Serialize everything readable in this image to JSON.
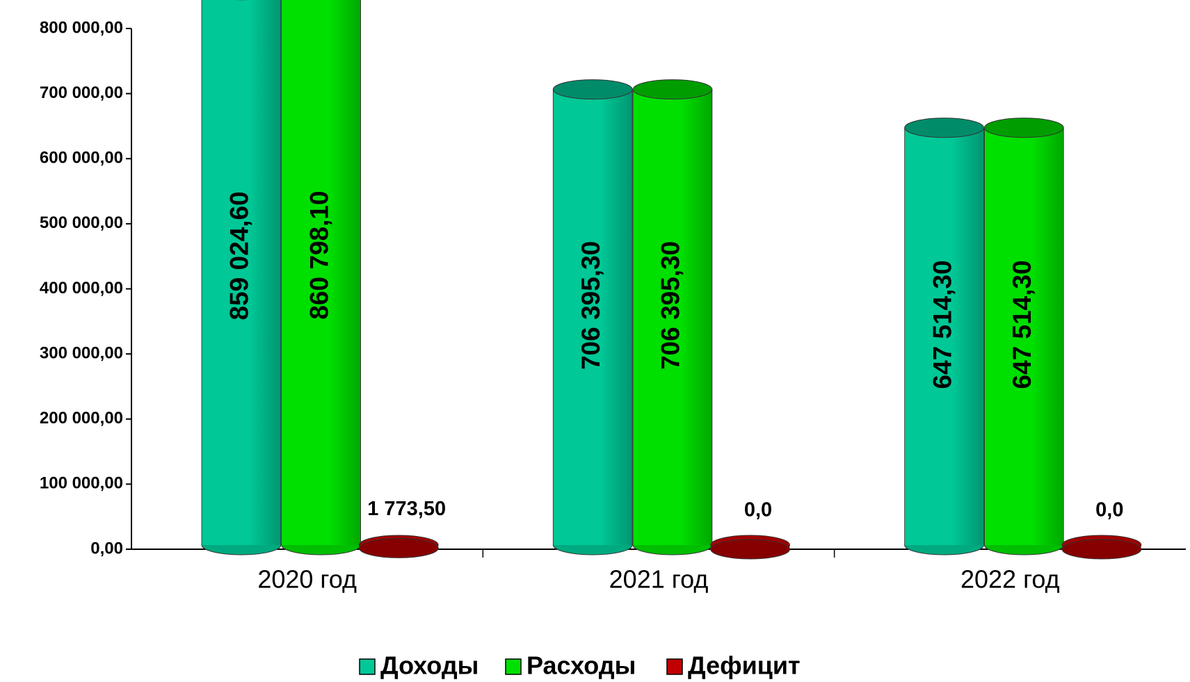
{
  "chart_data": {
    "type": "bar",
    "categories": [
      "2020 год",
      "2021 год",
      "2022 год"
    ],
    "series": [
      {
        "name": "Доходы",
        "color": "#00c896",
        "values": [
          859024.6,
          706395.3,
          647514.3
        ],
        "value_labels": [
          "859 024,60",
          "706 395,30",
          "647 514,30"
        ]
      },
      {
        "name": "Расходы",
        "color": "#00e000",
        "values": [
          860798.1,
          706395.3,
          647514.3
        ],
        "value_labels": [
          "860 798,10",
          "706 395,30",
          "647 514,30"
        ]
      },
      {
        "name": "Дефицит",
        "color": "#c00000",
        "values": [
          1773.5,
          0,
          0
        ],
        "value_labels": [
          "1 773,50",
          "0,0",
          "0,0"
        ]
      }
    ],
    "ylim": [
      0,
      800000
    ],
    "yticks": [
      {
        "value": 0,
        "label": "0,00"
      },
      {
        "value": 100000,
        "label": "100 000,00"
      },
      {
        "value": 200000,
        "label": "200 000,00"
      },
      {
        "value": 300000,
        "label": "300 000,00"
      },
      {
        "value": 400000,
        "label": "400 000,00"
      },
      {
        "value": 500000,
        "label": "500 000,00"
      },
      {
        "value": 600000,
        "label": "600 000,00"
      },
      {
        "value": 700000,
        "label": "700 000,00"
      },
      {
        "value": 800000,
        "label": "800 000,00"
      }
    ],
    "legend": "bottom"
  }
}
